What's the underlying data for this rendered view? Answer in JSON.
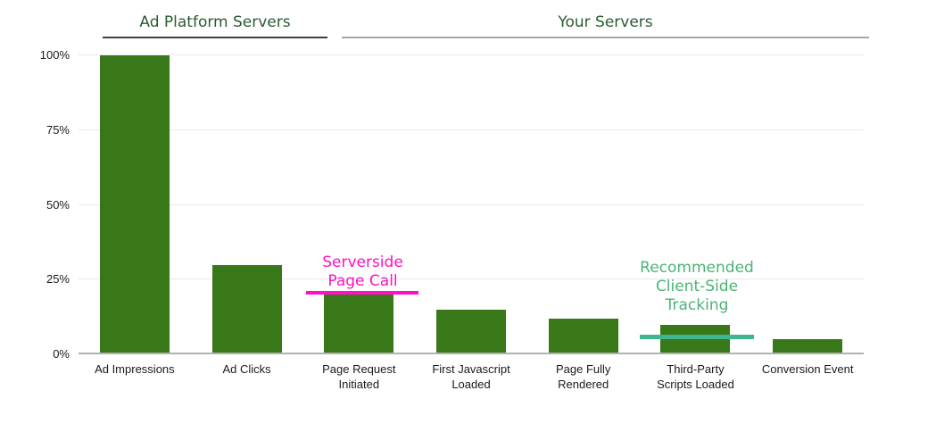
{
  "header": {
    "groups": [
      {
        "label": "Ad Platform Servers"
      },
      {
        "label": "Your Servers"
      }
    ]
  },
  "chart_data": {
    "type": "bar",
    "title": "",
    "categories": [
      "Ad Impressions",
      "Ad Clicks",
      "Page Request Initiated",
      "First Javascript Loaded",
      "Page Fully Rendered",
      "Third-Party Scripts Loaded",
      "Conversion Event"
    ],
    "category_lines": [
      [
        "Ad Impressions"
      ],
      [
        "Ad Clicks"
      ],
      [
        "Page Request",
        "Initiated"
      ],
      [
        "First Javascript",
        "Loaded"
      ],
      [
        "Page Fully",
        "Rendered"
      ],
      [
        "Third-Party",
        "Scripts Loaded"
      ],
      [
        "Conversion Event"
      ]
    ],
    "values": [
      100,
      30,
      20,
      15,
      12,
      10,
      5
    ],
    "unit": "%",
    "xlabel": "",
    "ylabel": "",
    "ylim": [
      0,
      100
    ],
    "yticks": [
      0,
      25,
      50,
      75,
      100
    ],
    "ytick_labels": [
      "0%",
      "25%",
      "50%",
      "75%",
      "100%"
    ],
    "grid": true,
    "legend": "none",
    "bar_color": "#387819",
    "groups": [
      {
        "label": "Ad Platform Servers",
        "categories": [
          "Ad Impressions",
          "Ad Clicks"
        ],
        "underline_color": "#3f3f3f"
      },
      {
        "label": "Your Servers",
        "categories": [
          "Page Request Initiated",
          "First Javascript Loaded",
          "Page Fully Rendered",
          "Third-Party Scripts Loaded",
          "Conversion Event"
        ],
        "underline_color": "#a6a6a6"
      }
    ],
    "annotations": [
      {
        "lines": [
          "Serverside",
          "Page Call"
        ],
        "text": "Serverside Page Call",
        "text_color": "#ff10c4",
        "line_color": "#ff10c4",
        "line_value": 20,
        "over_category": "Page Request Initiated"
      },
      {
        "lines": [
          "Recommended",
          "Client-Side",
          "Tracking"
        ],
        "text": "Recommended Client-Side Tracking",
        "text_color": "#4bb473",
        "line_color": "#3eb68f",
        "line_value": 6,
        "over_category": "Third-Party Scripts Loaded"
      }
    ]
  }
}
